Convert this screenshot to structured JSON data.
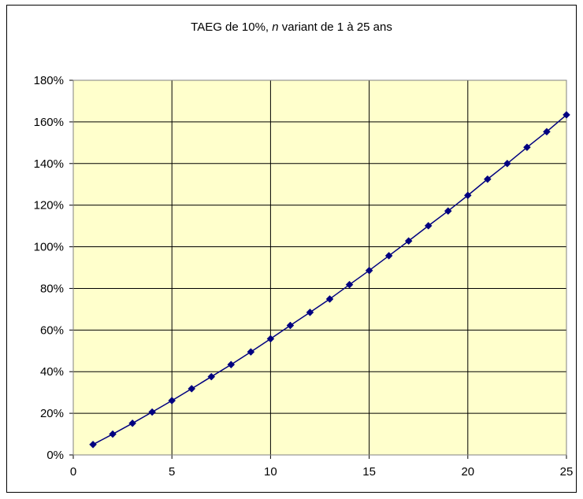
{
  "chart_data": {
    "type": "line",
    "title": {
      "before": "TAEG de 10%, ",
      "italic": "n",
      "after": " variant de 1 à 25 ans"
    },
    "xlabel": "",
    "ylabel": "",
    "xlim": [
      0,
      25
    ],
    "ylim": [
      0,
      180
    ],
    "x_ticks": [
      "0",
      "5",
      "10",
      "15",
      "20",
      "25"
    ],
    "y_ticks": [
      "0%",
      "20%",
      "40%",
      "60%",
      "80%",
      "100%",
      "120%",
      "140%",
      "160%",
      "180%"
    ],
    "grid": true,
    "plot_background": "#FFFFCC",
    "series": [
      {
        "color": "#000080",
        "marker": "diamond",
        "x": [
          1,
          2,
          3,
          4,
          5,
          6,
          7,
          8,
          9,
          10,
          11,
          12,
          13,
          14,
          15,
          16,
          17,
          18,
          19,
          20,
          21,
          22,
          23,
          24,
          25
        ],
        "y": [
          5,
          10,
          15.2,
          20.6,
          26.1,
          31.8,
          37.6,
          43.4,
          49.5,
          55.8,
          62.2,
          68.5,
          74.9,
          81.8,
          88.6,
          95.7,
          102.8,
          110.1,
          117.2,
          124.7,
          132.5,
          140.0,
          147.8,
          155.3,
          163.4
        ]
      }
    ]
  }
}
